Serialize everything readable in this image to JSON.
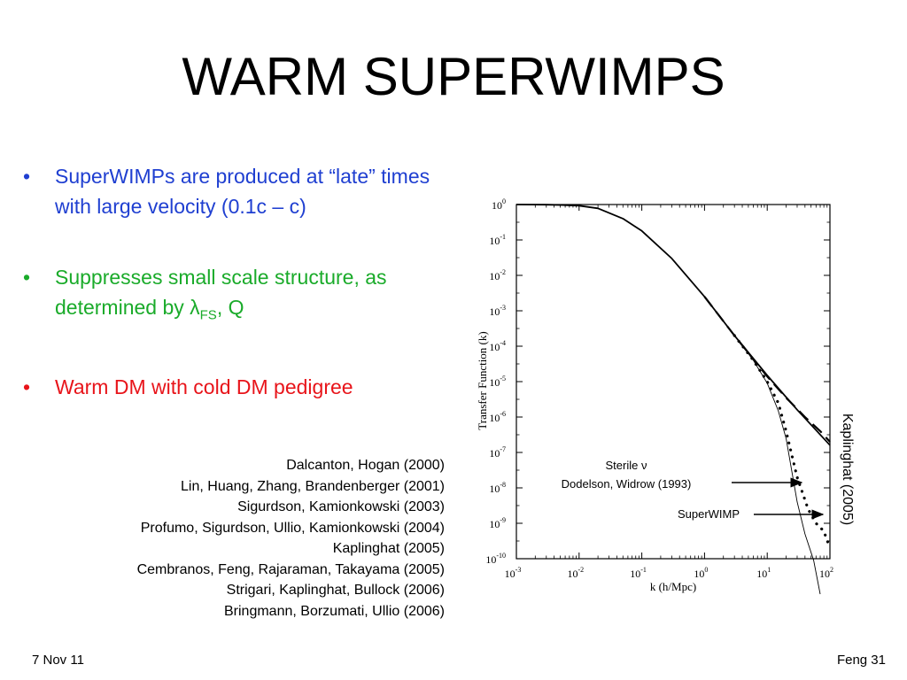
{
  "slide": {
    "title": "WARM SUPERWIMPS",
    "bullets": [
      {
        "text_parts": [
          "SuperWIMPs are produced at “late” times with large velocity (0.1c – c)"
        ],
        "color": "#1f3fd1"
      },
      {
        "text_parts": [
          "Suppresses small scale structure, as determined by ",
          "λ",
          "FS",
          ", Q"
        ],
        "color": "#1aab2a"
      },
      {
        "text_parts": [
          "Warm DM with cold DM pedigree"
        ],
        "color": "#e8141a"
      }
    ],
    "references": [
      "Dalcanton, Hogan (2000)",
      "Lin, Huang, Zhang, Brandenberger (2001)",
      "Sigurdson, Kamionkowski (2003)",
      "Profumo, Sigurdson, Ullio, Kamionkowski (2004)",
      "Kaplinghat (2005)",
      "Cembranos, Feng, Rajaraman, Takayama (2005)",
      "Strigari, Kaplinghat, Bullock (2006)",
      "Bringmann, Borzumati, Ullio (2006)"
    ],
    "footer_left": "7 Nov 11",
    "footer_right": "Feng  31"
  },
  "chart_data": {
    "type": "line",
    "xlabel": "k (h/Mpc)",
    "ylabel": "Transfer Function (k)",
    "x_scale": "log",
    "y_scale": "log",
    "xlim": [
      0.001,
      100
    ],
    "ylim": [
      1e-10,
      1
    ],
    "x_ticks": [
      {
        "base": "10",
        "exp": "-3"
      },
      {
        "base": "10",
        "exp": "-2"
      },
      {
        "base": "10",
        "exp": "-1"
      },
      {
        "base": "10",
        "exp": "0"
      },
      {
        "base": "10",
        "exp": "1"
      },
      {
        "base": "10",
        "exp": "2"
      }
    ],
    "y_ticks": [
      {
        "base": "10",
        "exp": "0"
      },
      {
        "base": "10",
        "exp": "-1"
      },
      {
        "base": "10",
        "exp": "-2"
      },
      {
        "base": "10",
        "exp": "-3"
      },
      {
        "base": "10",
        "exp": "-4"
      },
      {
        "base": "10",
        "exp": "-5"
      },
      {
        "base": "10",
        "exp": "-6"
      },
      {
        "base": "10",
        "exp": "-7"
      },
      {
        "base": "10",
        "exp": "-8"
      },
      {
        "base": "10",
        "exp": "-9"
      },
      {
        "base": "10",
        "exp": "-10"
      }
    ],
    "series": [
      {
        "style": "solid",
        "stroke_width": 1.8,
        "x": [
          0.001,
          0.003,
          0.006,
          0.01,
          0.02,
          0.05,
          0.1,
          0.3,
          1,
          3,
          10,
          30,
          100
        ],
        "y": [
          1,
          0.99,
          0.96,
          0.93,
          0.78,
          0.4,
          0.18,
          0.03,
          0.0025,
          0.0002,
          1.5e-05,
          1.6e-06,
          1.6e-07
        ]
      },
      {
        "style": "dashed",
        "stroke_width": 2.2,
        "x": [
          1,
          3,
          10,
          20,
          40,
          70,
          100
        ],
        "y": [
          0.0025,
          0.0002,
          1.4e-05,
          3.5e-06,
          1e-06,
          4e-07,
          2e-07
        ]
      },
      {
        "style": "dotted",
        "stroke_width": 3.2,
        "x": [
          3,
          6,
          10,
          15,
          20,
          30,
          45,
          60,
          80,
          100
        ],
        "y": [
          0.0002,
          4e-05,
          1e-05,
          2.5e-06,
          4e-07,
          2e-08,
          2.5e-09,
          1e-09,
          6e-10,
          2e-10
        ]
      },
      {
        "style": "thin",
        "stroke_width": 0.9,
        "x": [
          3,
          6,
          10,
          15,
          20,
          30,
          40,
          55,
          70
        ],
        "y": [
          0.0002,
          4e-05,
          9e-06,
          1.5e-06,
          2.5e-07,
          4e-09,
          5e-10,
          9e-11,
          1e-11
        ]
      }
    ],
    "annotations": [
      {
        "lines": [
          "Sterile ν",
          "Dodelson, Widrow (1993)"
        ]
      },
      {
        "lines": [
          "SuperWIMP"
        ]
      },
      {
        "lines": [
          "Kaplinghat (2005)"
        ]
      }
    ]
  }
}
